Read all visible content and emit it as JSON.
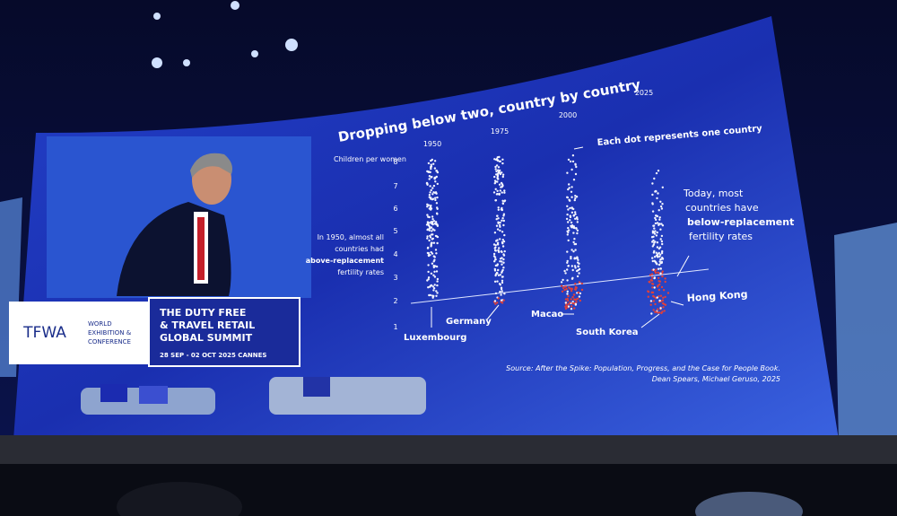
{
  "slide": {
    "title": "Dropping below two, country by country",
    "y_axis_label": "Children per women",
    "y_ticks": [
      8,
      7,
      6,
      5,
      4,
      3,
      2,
      1
    ],
    "years": [
      "1950",
      "1975",
      "2000",
      "2025"
    ],
    "dot_note": "Each dot represents one country",
    "left_note": [
      "In 1950, almost all",
      "countries had",
      "above-replacement",
      "fertility rates"
    ],
    "right_note": [
      "Today, most",
      "countries have",
      "below-replacement",
      "fertility rates"
    ],
    "country_labels": [
      "Luxembourg",
      "Germany",
      "Macao",
      "South Korea",
      "Hong Kong"
    ],
    "source": [
      "Source: After the Spike: Population, Progress, and the Case for People Book.",
      "Dean Spears, Michael Geruso, 2025"
    ]
  },
  "banner": {
    "logo": "TFWA",
    "event_type": [
      "WORLD",
      "EXHIBITION &",
      "CONFERENCE"
    ],
    "summit": [
      "THE DUTY FREE",
      "& TRAVEL RETAIL",
      "GLOBAL SUMMIT"
    ],
    "dates": "28 SEP - 02 OCT 2025 CANNES"
  }
}
